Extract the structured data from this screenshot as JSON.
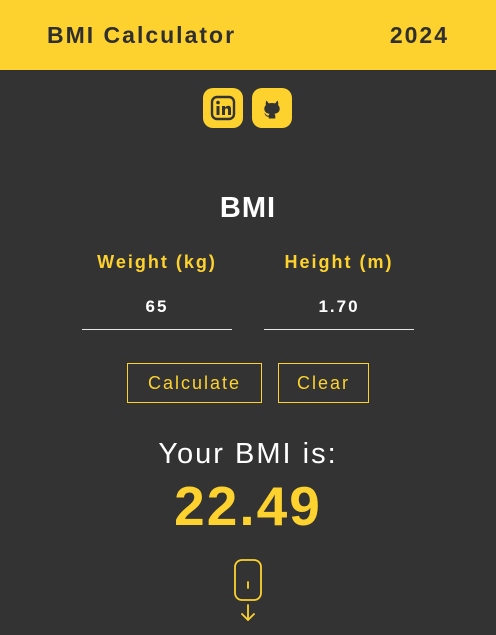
{
  "header": {
    "title": "BMI Calculator",
    "year": "2024"
  },
  "social": [
    {
      "name": "LinkedIn",
      "icon": "linkedin-icon"
    },
    {
      "name": "GitHub",
      "icon": "github-icon"
    }
  ],
  "calculator": {
    "title": "BMI",
    "weight": {
      "label": "Weight (kg)",
      "value": "65"
    },
    "height": {
      "label": "Height (m)",
      "value": "1.70"
    },
    "calculate_label": "Calculate",
    "clear_label": "Clear"
  },
  "result": {
    "label": "Your BMI is:",
    "value": "22.49"
  },
  "colors": {
    "accent": "#FDD22F",
    "background": "#333333",
    "text": "#FFFFFF"
  }
}
